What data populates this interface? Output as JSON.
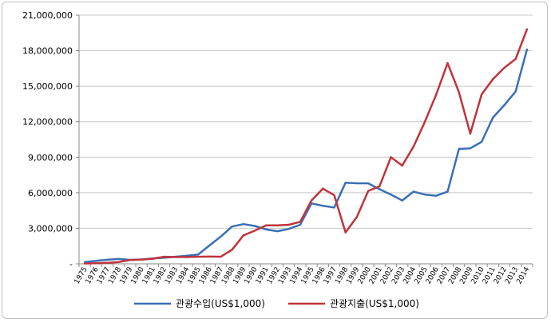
{
  "chart_data": {
    "type": "line",
    "title": "",
    "xlabel": "",
    "ylabel": "",
    "ylim": [
      0,
      21000000
    ],
    "y_ticks": [
      0,
      3000000,
      6000000,
      9000000,
      12000000,
      15000000,
      18000000,
      21000000
    ],
    "y_tick_labels": [
      "-",
      "3,000,000",
      "6,000,000",
      "9,000,000",
      "12,000,000",
      "15,000,000",
      "18,000,000",
      "21,000,000"
    ],
    "grid": "horizontal",
    "legend_position": "bottom",
    "categories": [
      "1975",
      "1976",
      "1977",
      "1978",
      "1979",
      "1980",
      "1981",
      "1982",
      "1983",
      "1984",
      "1985",
      "1986",
      "1987",
      "1988",
      "1989",
      "1990",
      "1991",
      "1992",
      "1993",
      "1994",
      "1995",
      "1996",
      "1997",
      "1998",
      "1999",
      "2000",
      "2001",
      "2002",
      "2003",
      "2004",
      "2005",
      "2006",
      "2007",
      "2008",
      "2009",
      "2010",
      "2011",
      "2012",
      "2013",
      "2014"
    ],
    "series": [
      {
        "name": "관광수입(US$1,000)",
        "color": "#3a6fb5",
        "values": [
          140000,
          250000,
          340000,
          410000,
          330000,
          370000,
          450000,
          510000,
          600000,
          680000,
          780000,
          1550000,
          2300000,
          3150000,
          3350000,
          3200000,
          2900000,
          2750000,
          2950000,
          3300000,
          5100000,
          4900000,
          4750000,
          6850000,
          6800000,
          6800000,
          6300000,
          5850000,
          5350000,
          6100000,
          5850000,
          5750000,
          6100000,
          9700000,
          9750000,
          10300000,
          12350000,
          13400000,
          14550000,
          18100000
        ]
      },
      {
        "name": "관광지출(US$1,000)",
        "color": "#c0343b",
        "values": [
          30000,
          50000,
          90000,
          150000,
          330000,
          350000,
          430000,
          600000,
          570000,
          570000,
          600000,
          610000,
          600000,
          1200000,
          2400000,
          2800000,
          3250000,
          3250000,
          3300000,
          3550000,
          5350000,
          6350000,
          5800000,
          2650000,
          3950000,
          6150000,
          6550000,
          9000000,
          8300000,
          9900000,
          12000000,
          14300000,
          16950000,
          14500000,
          11000000,
          14300000,
          15600000,
          16550000,
          17300000,
          19800000
        ]
      }
    ]
  }
}
